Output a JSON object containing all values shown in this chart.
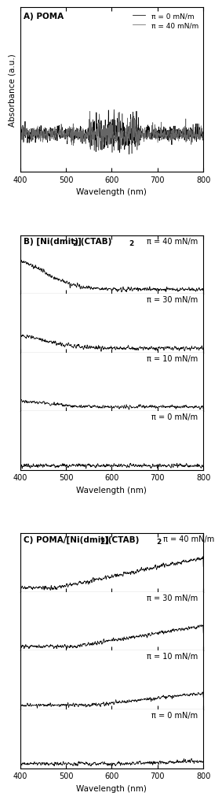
{
  "title_A": "A) POMA",
  "title_B": "B) [Ni(dmit)",
  "title_B_sub1": "2",
  "title_B_mid": "](CTAB)",
  "title_B_sub2": "2",
  "title_C": "C) POMA/[Ni(dmit)",
  "title_C_sub1": "2",
  "title_C_mid": "](CTAB)",
  "title_C_sub2": "2",
  "xlabel": "Wavelength (nm)",
  "ylabel_A": "Absorbance (a.u.)",
  "xmin": 400,
  "xmax": 800,
  "xticks": [
    400,
    500,
    600,
    700,
    800
  ],
  "legend_0": "π = 0 mN/m",
  "legend_40": "π = 40 mN/m",
  "color_black": "#000000",
  "color_gray": "#666666",
  "pi_labels_B": [
    "π = 40 mN/m",
    "π = 30 mN/m",
    "π = 10 mN/m",
    "π = 0 mN/m"
  ],
  "pi_labels_C": [
    "π = 40 mN/m",
    "π = 30 mN/m",
    "π = 10 mN/m",
    "π = 0 mN/m"
  ],
  "pi_label_C0": "π = 40 mN/m",
  "seed": 12345,
  "n_points": 801,
  "background_color": "#ffffff",
  "fontsize_title": 7.5,
  "fontsize_label": 7.5,
  "fontsize_tick": 7,
  "fontsize_legend": 6.5,
  "fontsize_pi": 7
}
